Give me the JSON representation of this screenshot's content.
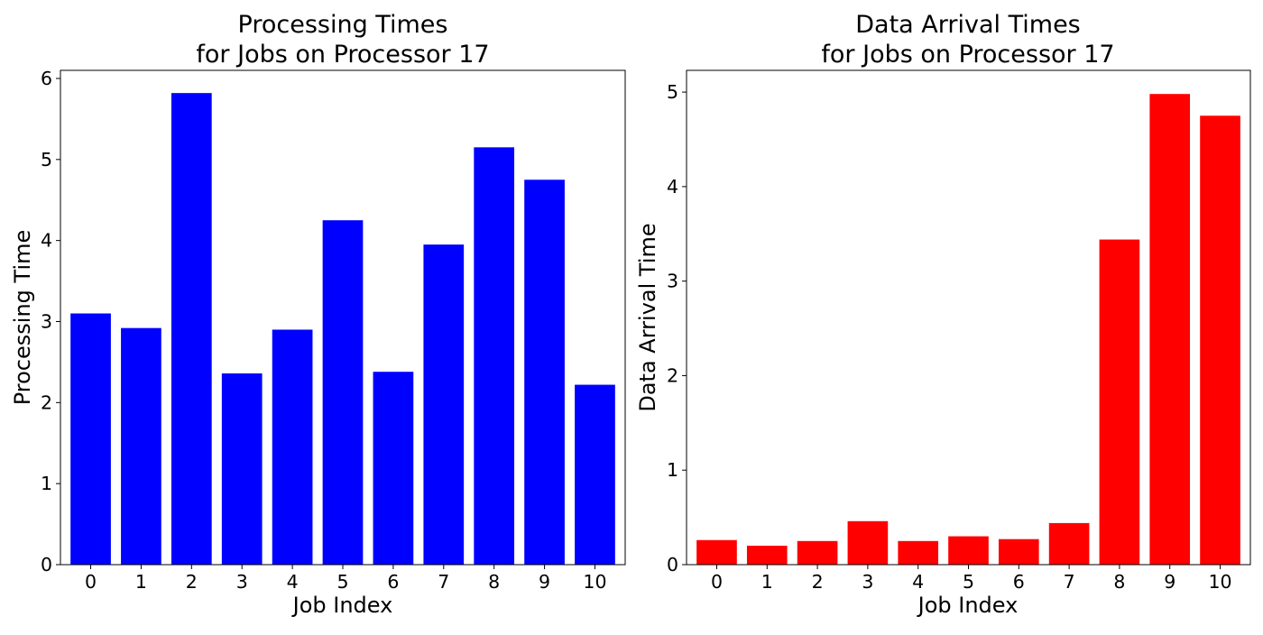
{
  "chart_data": [
    {
      "type": "bar",
      "title_lines": [
        "Processing Times",
        "for Jobs on Processor 17"
      ],
      "xlabel": "Job Index",
      "ylabel": "Processing Time",
      "categories": [
        "0",
        "1",
        "2",
        "3",
        "4",
        "5",
        "6",
        "7",
        "8",
        "9",
        "10"
      ],
      "values": [
        3.1,
        2.92,
        5.82,
        2.36,
        2.9,
        4.25,
        2.38,
        3.95,
        5.15,
        4.75,
        2.22
      ],
      "yticks": [
        "0",
        "1",
        "2",
        "3",
        "4",
        "5",
        "6"
      ],
      "ylim": [
        0,
        6.1
      ],
      "bar_color": "#0000ff",
      "grid": false,
      "legend": "none"
    },
    {
      "type": "bar",
      "title_lines": [
        "Data Arrival Times",
        "for Jobs on Processor 17"
      ],
      "xlabel": "Job Index",
      "ylabel": "Data Arrival Time",
      "categories": [
        "0",
        "1",
        "2",
        "3",
        "4",
        "5",
        "6",
        "7",
        "8",
        "9",
        "10"
      ],
      "values": [
        0.26,
        0.2,
        0.25,
        0.46,
        0.25,
        0.3,
        0.27,
        0.44,
        3.44,
        4.98,
        4.75
      ],
      "yticks": [
        "0",
        "1",
        "2",
        "3",
        "4",
        "5"
      ],
      "ylim": [
        0,
        5.23
      ],
      "bar_color": "#ff0000",
      "grid": false,
      "legend": "none"
    }
  ]
}
